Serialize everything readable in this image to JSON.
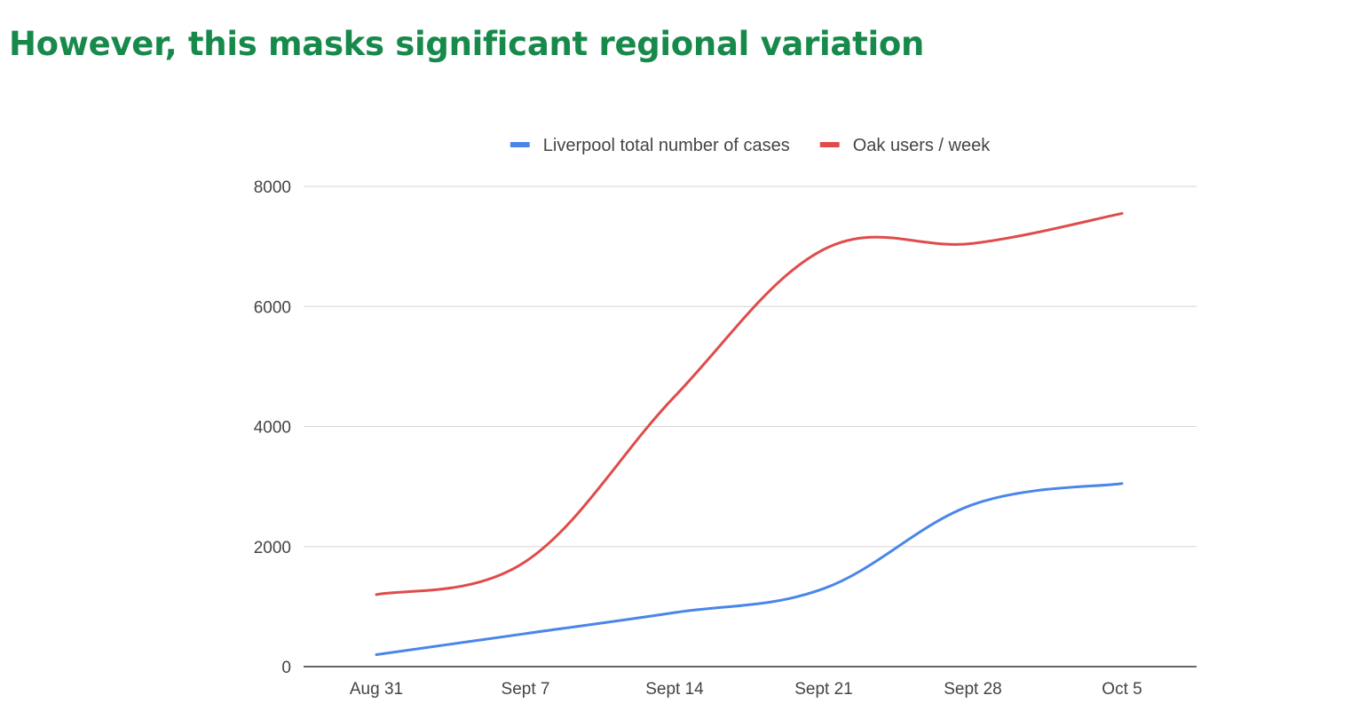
{
  "slide": {
    "title": "However, this masks significant regional variation"
  },
  "chart_data": {
    "type": "line",
    "title": "",
    "xlabel": "",
    "ylabel": "",
    "categories": [
      "Aug 31",
      "Sept 7",
      "Sept 14",
      "Sept 21",
      "Sept 28",
      "Oct 5"
    ],
    "ylim": [
      0,
      8000
    ],
    "yticks": [
      0,
      2000,
      4000,
      6000,
      8000
    ],
    "grid": true,
    "smooth": true,
    "legend_position": "top",
    "series": [
      {
        "name": "Liverpool total number of cases",
        "color": "#4a86e8",
        "values": [
          200,
          550,
          900,
          1300,
          2700,
          3050
        ]
      },
      {
        "name": "Oak users / week",
        "color": "#e04b4b",
        "values": [
          1200,
          1750,
          4500,
          6950,
          7050,
          7550
        ]
      }
    ]
  }
}
